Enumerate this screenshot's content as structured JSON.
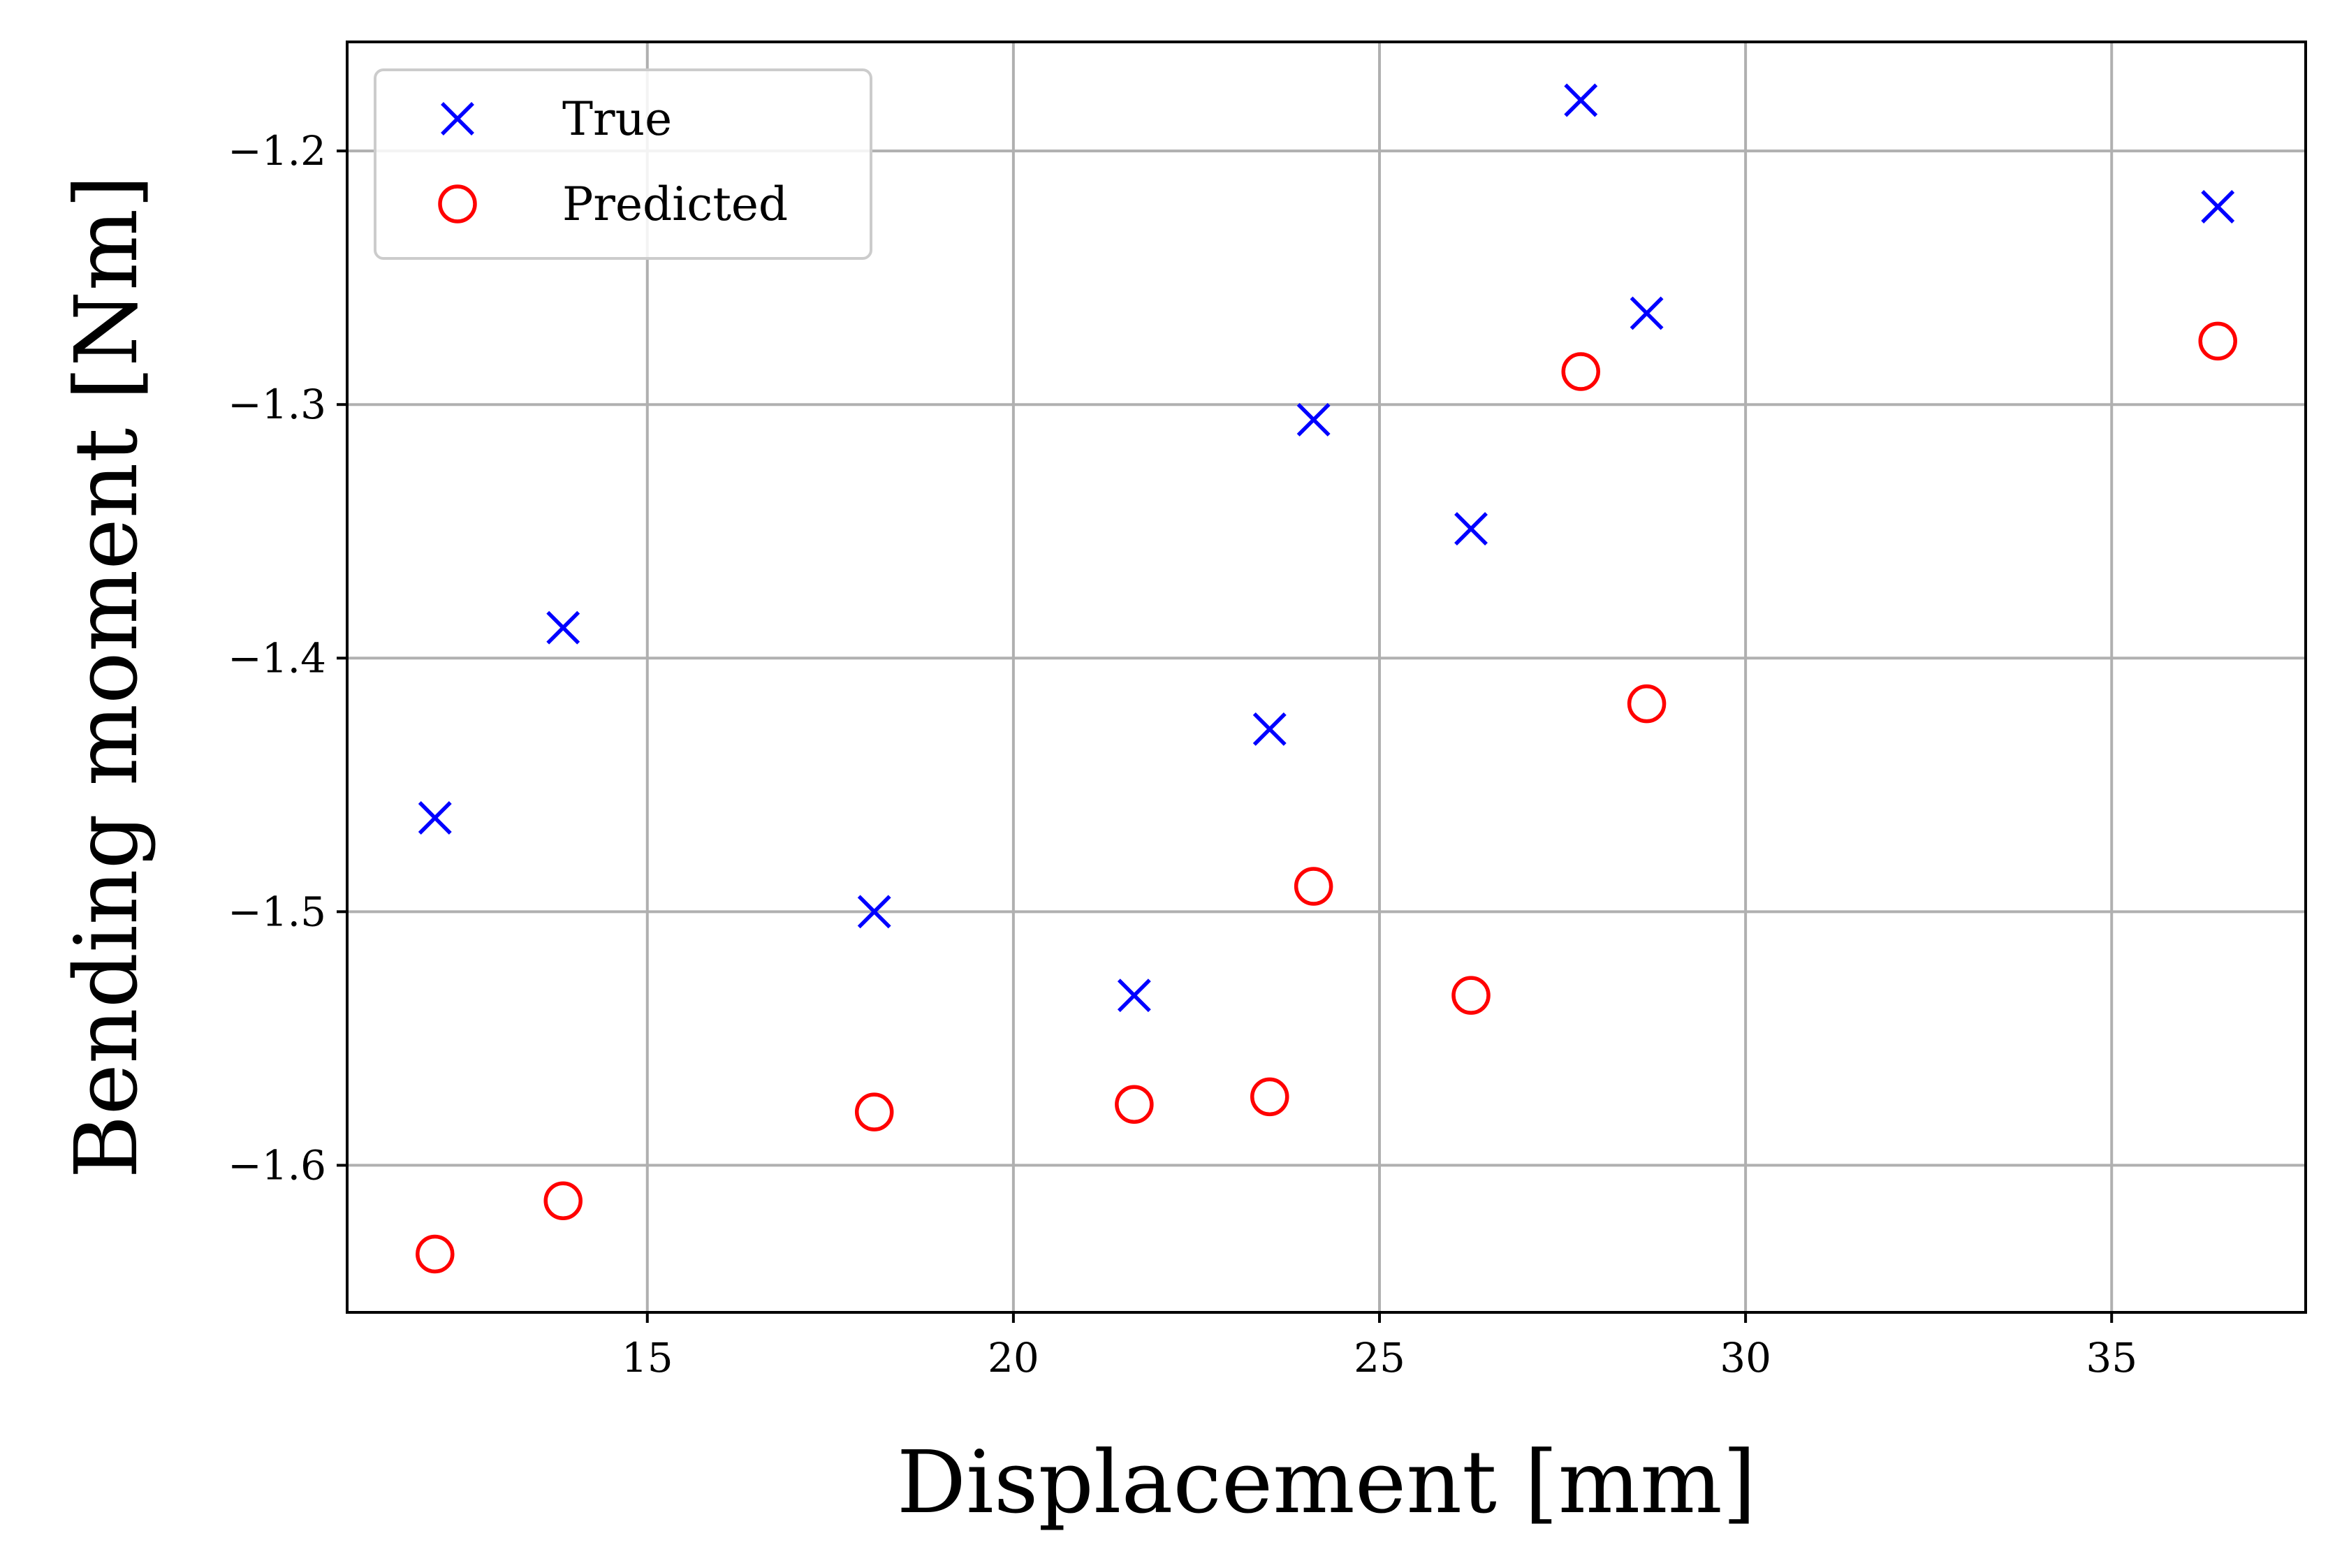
{
  "chart_data": {
    "type": "scatter",
    "xlabel": "Displacement [mm]",
    "ylabel": "Bending moment [Nm]",
    "xlim": [
      10.9,
      37.65
    ],
    "ylim": [
      -1.658,
      -1.157
    ],
    "xticks": [
      15,
      20,
      25,
      30,
      35
    ],
    "xtick_labels": [
      "15",
      "20",
      "25",
      "30",
      "35"
    ],
    "yticks": [
      -1.2,
      -1.3,
      -1.4,
      -1.5,
      -1.6
    ],
    "ytick_labels": [
      "−1.2",
      "−1.3",
      "−1.4",
      "−1.5",
      "−1.6"
    ],
    "grid": true,
    "legend_position": "top-left",
    "series": [
      {
        "name": "True",
        "marker": "x",
        "color": "#0000ff",
        "x": [
          12.1,
          13.85,
          18.1,
          21.65,
          23.5,
          24.1,
          26.25,
          27.75,
          28.65,
          36.45
        ],
        "y": [
          -1.463,
          -1.388,
          -1.5,
          -1.533,
          -1.428,
          -1.306,
          -1.349,
          -1.18,
          -1.264,
          -1.222
        ]
      },
      {
        "name": "Predicted",
        "marker": "o",
        "color": "#ff0000",
        "x": [
          12.1,
          13.85,
          18.1,
          21.65,
          23.5,
          24.1,
          26.25,
          27.75,
          28.65,
          36.45
        ],
        "y": [
          -1.635,
          -1.614,
          -1.579,
          -1.576,
          -1.573,
          -1.49,
          -1.533,
          -1.287,
          -1.418,
          -1.275
        ]
      }
    ]
  }
}
